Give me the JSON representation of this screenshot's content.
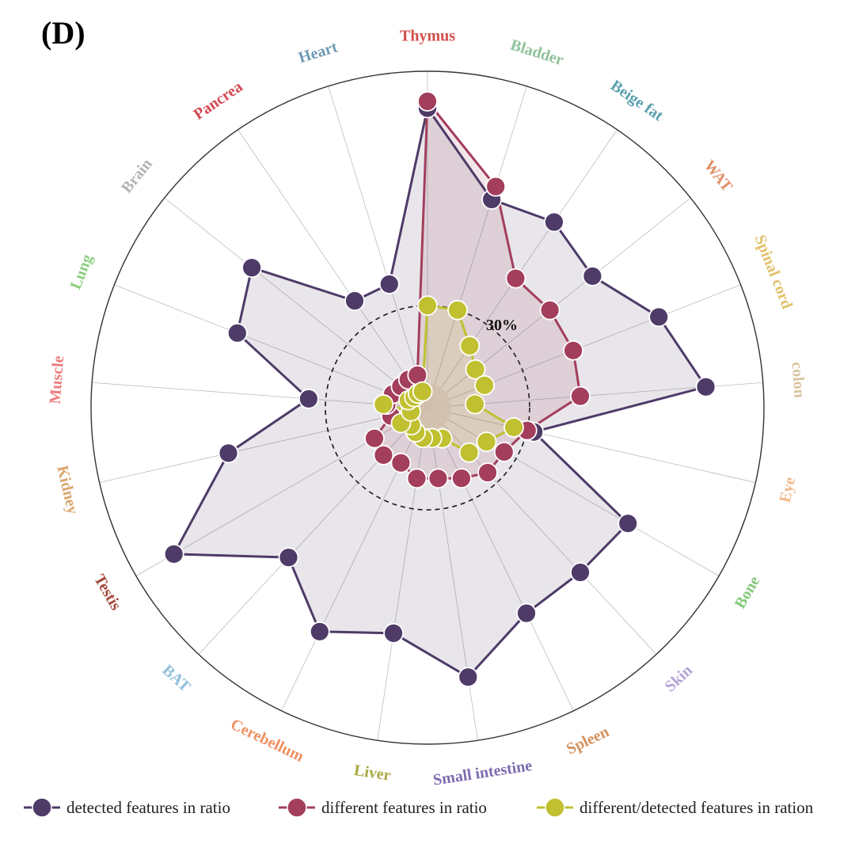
{
  "panel_label": "(D)",
  "chart_data": {
    "type": "radar",
    "axes": [
      "Thymus",
      "Bladder",
      "Beige fat",
      "WAT",
      "Spinal cord",
      "colon",
      "Eye",
      "Bone",
      "Skin",
      "Spleen",
      "Small intestine",
      "Liver",
      "Cerebellum",
      "BAT",
      "Testis",
      "Kidney",
      "Muscle",
      "Lung",
      "Brain",
      "Pancrea",
      "Heart"
    ],
    "axis_colors": [
      "#d24f4a",
      "#8fc39a",
      "#5a9fb0",
      "#e0906a",
      "#e2c16a",
      "#d8c49e",
      "#f3b889",
      "#84c97a",
      "#b5a2d3",
      "#d6915c",
      "#7d6bb0",
      "#a9a842",
      "#ee9062",
      "#8fbedc",
      "#a4473a",
      "#dba66e",
      "#ee7c80",
      "#8ccf80",
      "#b3b3b3",
      "#d24a52",
      "#6f9bb5"
    ],
    "radial_range": [
      0,
      100
    ],
    "reference_ring": {
      "value": 30,
      "label": "30%"
    },
    "series": [
      {
        "name": "detected features in ratio",
        "color": "#4e3b68",
        "values": [
          88,
          64,
          66,
          62,
          73,
          82,
          32,
          68,
          66,
          67,
          80,
          67,
          73,
          60,
          86,
          60,
          35,
          60,
          66,
          38,
          38
        ]
      },
      {
        "name": "different features in ratio",
        "color": "#a33e5c",
        "values": [
          90,
          68,
          46,
          46,
          46,
          45,
          30,
          26,
          26,
          23,
          21,
          21,
          18,
          19,
          18,
          11,
          12,
          11,
          10,
          10,
          10
        ]
      },
      {
        "name": "different/detected features in ration",
        "color": "#c0c030",
        "values": [
          30,
          30,
          22,
          18,
          18,
          14,
          26,
          20,
          18,
          10,
          9,
          9,
          8,
          7,
          9,
          5,
          13,
          6,
          5,
          5,
          5
        ]
      }
    ]
  }
}
